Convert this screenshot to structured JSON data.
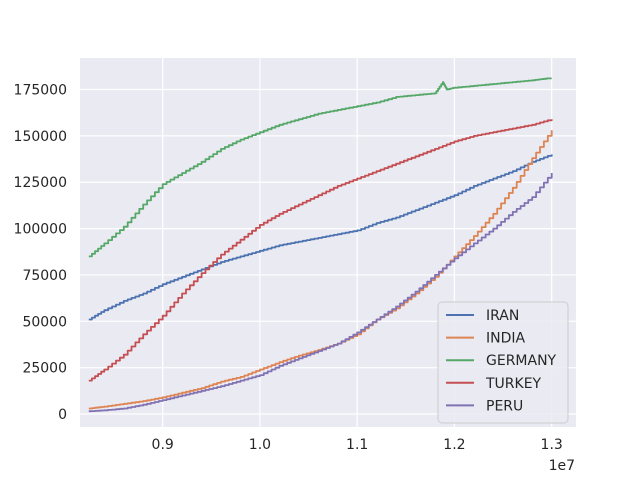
{
  "chart_data": {
    "type": "line",
    "title": "",
    "xlabel": "",
    "ylabel": "",
    "x_offset_label": "1e7",
    "xlim": [
      8150000,
      13250000
    ],
    "ylim": [
      -7000,
      192000
    ],
    "x_ticks": [
      9000000,
      10000000,
      11000000,
      12000000,
      13000000
    ],
    "x_tick_labels": [
      "0.9",
      "1.0",
      "1.1",
      "1.2",
      "1.3"
    ],
    "y_ticks": [
      0,
      25000,
      50000,
      75000,
      100000,
      125000,
      150000,
      175000
    ],
    "y_tick_labels": [
      "0",
      "25000",
      "50000",
      "75000",
      "100000",
      "125000",
      "150000",
      "175000"
    ],
    "grid": true,
    "legend_position": "lower-right",
    "colors": {
      "background": "#eaeaf2",
      "grid": "#ffffff",
      "text": "#262626"
    },
    "series": [
      {
        "name": "IRAN",
        "color": "#4c72b0",
        "x": [
          8240000,
          8400000,
          8600000,
          8800000,
          9000000,
          9200000,
          9400000,
          9600000,
          9800000,
          10000000,
          10200000,
          10400000,
          10600000,
          10800000,
          11000000,
          11200000,
          11400000,
          11600000,
          11800000,
          12000000,
          12200000,
          12400000,
          12600000,
          12800000,
          13000000
        ],
        "y": [
          51000,
          56000,
          61000,
          65000,
          70000,
          74000,
          78000,
          82000,
          85000,
          88000,
          91000,
          93000,
          95000,
          97000,
          99000,
          103000,
          106000,
          110000,
          114000,
          118000,
          123000,
          127000,
          131000,
          136000,
          140000
        ]
      },
      {
        "name": "INDIA",
        "color": "#dd8452",
        "x": [
          8240000,
          8400000,
          8600000,
          8800000,
          9000000,
          9200000,
          9400000,
          9600000,
          9800000,
          10000000,
          10200000,
          10400000,
          10600000,
          10800000,
          11000000,
          11200000,
          11400000,
          11600000,
          11800000,
          12000000,
          12200000,
          12400000,
          12600000,
          12800000,
          13000000
        ],
        "y": [
          3000,
          4000,
          5500,
          7000,
          9000,
          11500,
          14000,
          17500,
          20000,
          24000,
          28000,
          31500,
          34500,
          38000,
          43000,
          51000,
          57000,
          65000,
          74000,
          85000,
          96000,
          108000,
          122000,
          138000,
          153000
        ]
      },
      {
        "name": "GERMANY",
        "color": "#55a868",
        "x": [
          8240000,
          8400000,
          8600000,
          8800000,
          9000000,
          9200000,
          9400000,
          9600000,
          9800000,
          10000000,
          10200000,
          10400000,
          10600000,
          10800000,
          11000000,
          11200000,
          11400000,
          11600000,
          11800000,
          11880000,
          11920000,
          12000000,
          12200000,
          12400000,
          12600000,
          12800000,
          12950000,
          13000000
        ],
        "y": [
          85000,
          92000,
          101000,
          113000,
          124000,
          130000,
          136000,
          143000,
          148000,
          152000,
          156000,
          159000,
          162000,
          164000,
          166000,
          168000,
          171000,
          172000,
          173000,
          179000,
          175000,
          176000,
          177000,
          178000,
          179000,
          180000,
          181000,
          181000
        ]
      },
      {
        "name": "TURKEY",
        "color": "#c44e52",
        "x": [
          8240000,
          8400000,
          8600000,
          8800000,
          9000000,
          9200000,
          9400000,
          9600000,
          9800000,
          10000000,
          10200000,
          10400000,
          10600000,
          10800000,
          11000000,
          11200000,
          11400000,
          11600000,
          11800000,
          12000000,
          12200000,
          12400000,
          12600000,
          12800000,
          13000000
        ],
        "y": [
          18000,
          24000,
          32000,
          43000,
          53000,
          65000,
          76000,
          86000,
          94000,
          102000,
          108000,
          113000,
          118000,
          123000,
          127000,
          131000,
          135000,
          139000,
          143000,
          147000,
          150000,
          152000,
          154000,
          156000,
          159000
        ]
      },
      {
        "name": "PERU",
        "color": "#8172b3",
        "x": [
          8240000,
          8400000,
          8600000,
          8800000,
          9000000,
          9200000,
          9400000,
          9600000,
          9800000,
          10000000,
          10200000,
          10400000,
          10600000,
          10800000,
          11000000,
          11200000,
          11400000,
          11600000,
          11800000,
          12000000,
          12200000,
          12400000,
          12600000,
          12800000,
          13000000
        ],
        "y": [
          1500,
          2000,
          3000,
          5000,
          7500,
          10000,
          12500,
          15000,
          18000,
          21000,
          26000,
          30000,
          34000,
          38000,
          44000,
          51000,
          58000,
          66000,
          75000,
          84000,
          92000,
          100000,
          109000,
          117000,
          130000
        ]
      }
    ]
  }
}
